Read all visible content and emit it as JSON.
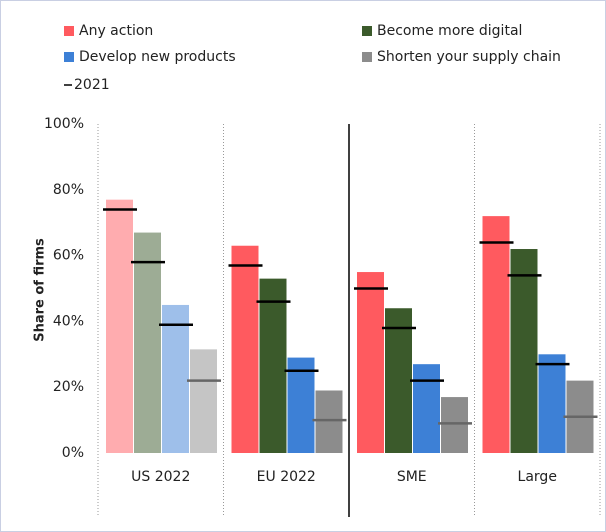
{
  "chart_data": {
    "type": "bar",
    "y_axis_label": "Share of firms",
    "categories": [
      "US 2022",
      "EU 2022",
      "SME",
      "Large"
    ],
    "faded_categories": [
      0
    ],
    "series": [
      {
        "name": "Any action",
        "color": "#ff5a5f",
        "values": [
          77,
          63,
          55,
          72
        ],
        "values_2021": [
          74,
          57,
          50,
          64
        ],
        "marker_color": "#000000"
      },
      {
        "name": "Become more digital",
        "color": "#3b5a2b",
        "values": [
          67,
          53,
          44,
          62
        ],
        "values_2021": [
          58,
          46,
          38,
          54
        ],
        "marker_color": "#000000"
      },
      {
        "name": "Develop new products",
        "color": "#3d80d6",
        "values": [
          45,
          29,
          27,
          30
        ],
        "values_2021": [
          39,
          25,
          22,
          27
        ],
        "marker_color": "#000000"
      },
      {
        "name": "Shorten your supply chain",
        "color": "#8c8c8c",
        "values": [
          31.5,
          19,
          17,
          22
        ],
        "values_2021": [
          22,
          10,
          9,
          11
        ],
        "marker_color": "#666666"
      }
    ],
    "marker_legend": "2021",
    "ylim": [
      0,
      100
    ],
    "yticks": [
      {
        "value": 0,
        "label": "0%"
      },
      {
        "value": 20,
        "label": "20%"
      },
      {
        "value": 40,
        "label": "40%"
      },
      {
        "value": 60,
        "label": "60%"
      },
      {
        "value": 80,
        "label": "80%"
      },
      {
        "value": 100,
        "label": "100%"
      }
    ],
    "solid_divider_after": 1
  }
}
